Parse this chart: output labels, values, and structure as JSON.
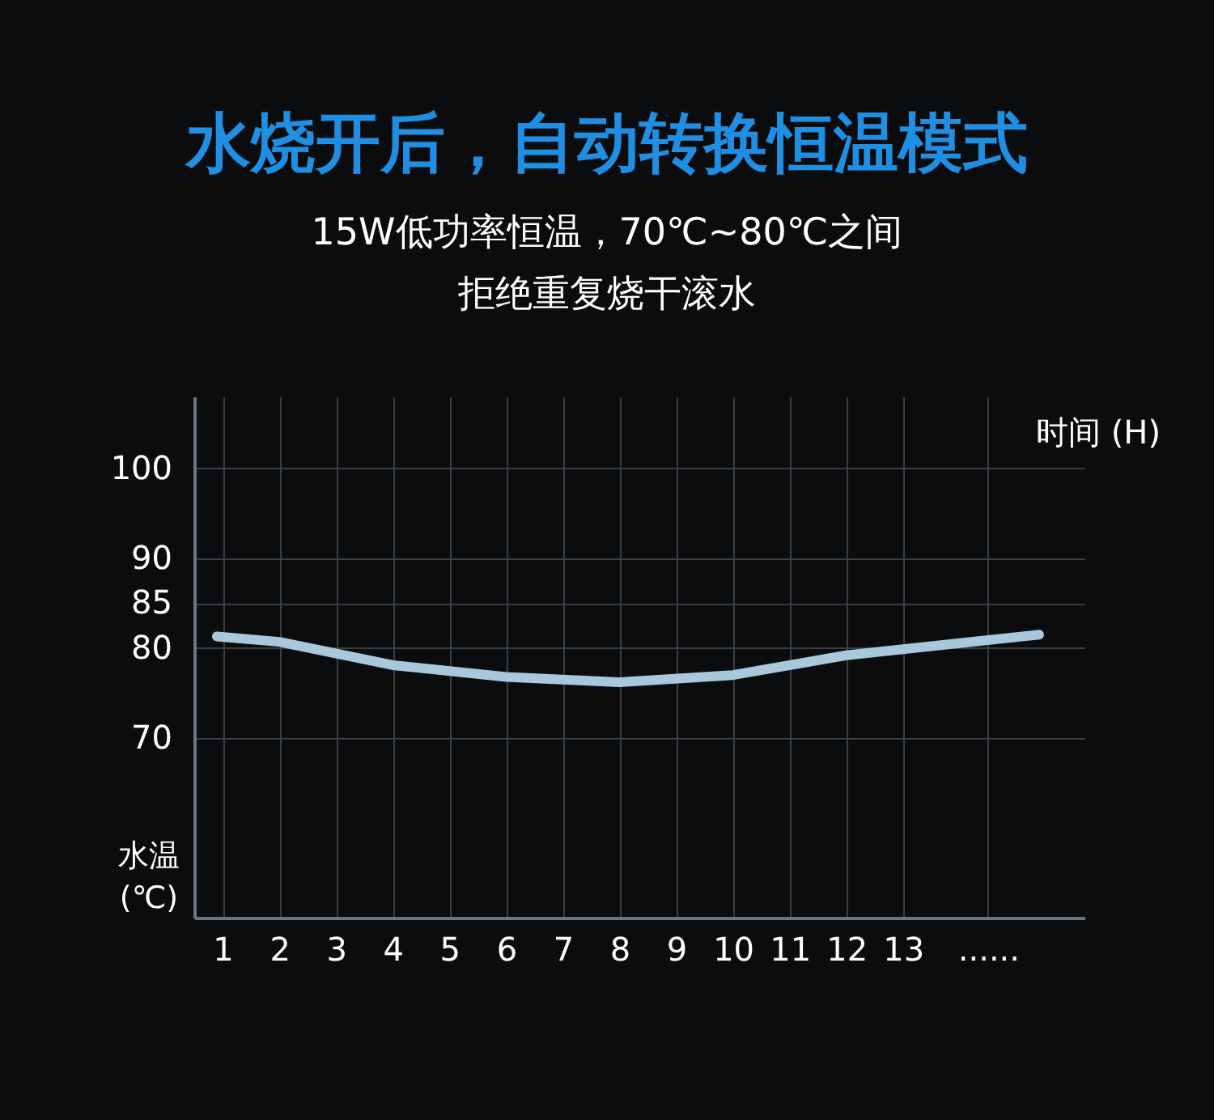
{
  "chart_data": {
    "type": "line",
    "title": "水烧开后，自动转换恒温模式",
    "subtitle": [
      "15W低功率恒温，70℃~80℃之间",
      "拒绝重复烧干滚水"
    ],
    "xlabel": "时间 (H)",
    "ylabel": "水温\n(℃)",
    "x": [
      0.9,
      2,
      4,
      6,
      8,
      10,
      12,
      15.4
    ],
    "series": [
      {
        "color": "#a9c8dc",
        "values": [
          81.3,
          80.7,
          78.1,
          76.8,
          76.2,
          77.0,
          79.2,
          81.5
        ]
      }
    ],
    "xlim": [
      0.5,
      16.2
    ],
    "xticks": [
      1,
      2,
      3,
      4,
      5,
      6,
      7,
      8,
      9,
      10,
      11,
      12,
      13,
      {
        "value": 14.5,
        "label": "......"
      }
    ],
    "ylim": [
      50,
      108
    ],
    "yticks": [
      70,
      80,
      85,
      90,
      100
    ],
    "grid": true,
    "marker": "none",
    "line_style": "solid"
  }
}
